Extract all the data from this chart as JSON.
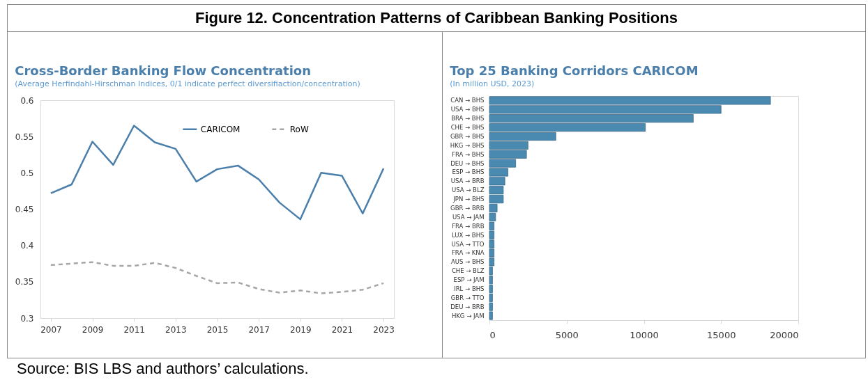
{
  "chart_data": [
    {
      "type": "other",
      "title": "Figure 12. Concentration Patterns of Caribbean Banking Positions",
      "annotations": [
        "Source: BIS LBS and authors’ calculations."
      ]
    },
    {
      "type": "line",
      "title": "Cross-Border Banking Flow Concentration",
      "subtitle": "(Average Herfindahl-Hirschman Indices, 0/1 indicate perfect diversifiaction/concentration)",
      "x": [
        2007,
        2008,
        2009,
        2010,
        2011,
        2012,
        2013,
        2014,
        2015,
        2016,
        2017,
        2018,
        2019,
        2020,
        2021,
        2022,
        2023
      ],
      "xlim": [
        2006.5,
        2023.5
      ],
      "xticks": [
        2007,
        2009,
        2011,
        2013,
        2015,
        2017,
        2019,
        2021,
        2023
      ],
      "ylim": [
        0.3,
        0.6
      ],
      "yticks": [
        0.3,
        0.35,
        0.4,
        0.45,
        0.5,
        0.55,
        0.6
      ],
      "grid": false,
      "legend": "top",
      "series": [
        {
          "name": "CARICOM",
          "color": "#4a7eab",
          "line_style": "solid",
          "values": [
            0.472,
            0.484,
            0.543,
            0.511,
            0.565,
            0.542,
            0.533,
            0.488,
            0.505,
            0.51,
            0.491,
            0.459,
            0.436,
            0.5,
            0.496,
            0.444,
            0.506
          ]
        },
        {
          "name": "RoW",
          "color": "#a6a6a6",
          "line_style": "dashed",
          "values": [
            0.373,
            0.375,
            0.377,
            0.372,
            0.372,
            0.376,
            0.369,
            0.358,
            0.348,
            0.349,
            0.34,
            0.335,
            0.338,
            0.334,
            0.336,
            0.339,
            0.348
          ]
        }
      ]
    },
    {
      "type": "bar",
      "orientation": "horizontal",
      "title": "Top 25 Banking Corridors CARICOM",
      "subtitle": "(In million USD, 2023)",
      "categories": [
        "CAN → BHS",
        "USA → BHS",
        "BRA → BHS",
        "CHE → BHS",
        "GBR → BHS",
        "HKG → BHS",
        "FRA → BHS",
        "DEU → BHS",
        "ESP → BHS",
        "USA → BRB",
        "USA → BLZ",
        "JPN → BHS",
        "GBR → BRB",
        "USA → JAM",
        "FRA → BRB",
        "LUX → BHS",
        "USA → TTO",
        "FRA → KNA",
        "AUS → BHS",
        "CHE → BLZ",
        "ESP → JAM",
        "IRL → BHS",
        "GBR → TTO",
        "DEU → BRB",
        "HKG → JAM"
      ],
      "values": [
        18200,
        15000,
        13200,
        10100,
        4300,
        2500,
        2400,
        1700,
        1200,
        1000,
        900,
        900,
        500,
        400,
        300,
        300,
        300,
        300,
        300,
        200,
        200,
        200,
        200,
        200,
        200
      ],
      "color": "#4a89b0",
      "xlim": [
        0,
        20000
      ],
      "xticks": [
        0,
        5000,
        10000,
        15000,
        20000
      ],
      "grid": false
    }
  ]
}
